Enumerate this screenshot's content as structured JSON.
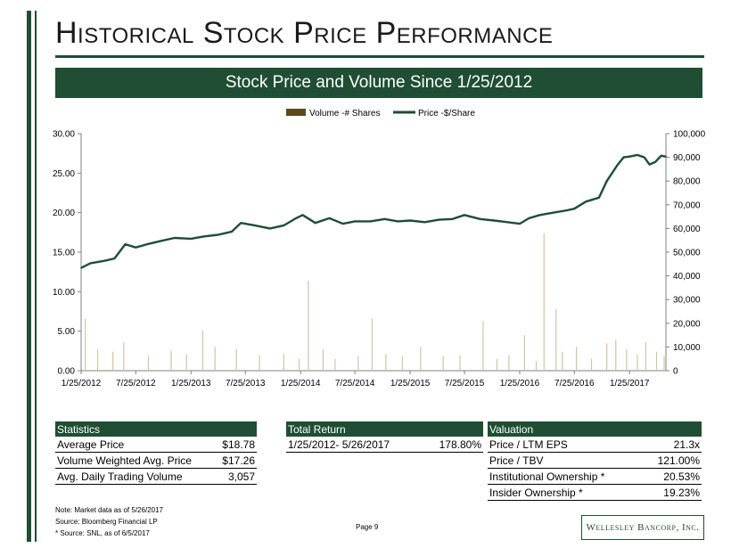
{
  "page": {
    "title": "Historical Stock Price Performance",
    "banner": "Stock Price and Volume Since 1/25/2012",
    "page_number": "Page 9",
    "logo_text": "Wellesley Bancorp, Inc.",
    "accent_color": "#1f4e34",
    "volume_color": "#cfc6a6"
  },
  "chart_data": {
    "type": "line",
    "title": "",
    "legend": [
      {
        "name": "Volume -# Shares",
        "color": "#5c4a1e",
        "shape": "bar"
      },
      {
        "name": "Price -$/Share",
        "color": "#1f4e34",
        "shape": "line"
      }
    ],
    "legend_position": "top-center",
    "x_start": "1/25/2012",
    "x_end": "5/26/2017",
    "x_ticks": [
      "1/25/2012",
      "7/25/2012",
      "1/25/2013",
      "7/25/2013",
      "1/25/2014",
      "7/25/2014",
      "1/25/2015",
      "7/25/2015",
      "1/25/2016",
      "7/25/2016",
      "1/25/2017"
    ],
    "y_left": {
      "min": 0,
      "max": 30,
      "ticks": [
        "0.00",
        "5.00",
        "10.00",
        "15.00",
        "20.00",
        "25.00",
        "30.00"
      ]
    },
    "y_right": {
      "min": 0,
      "max": 100000,
      "ticks": [
        "0",
        "10,000",
        "20,000",
        "30,000",
        "40,000",
        "50,000",
        "60,000",
        "70,000",
        "80,000",
        "90,000",
        "100,000"
      ]
    },
    "grid": false,
    "series": [
      {
        "name": "Price -$/Share",
        "axis": "left",
        "points": [
          [
            "1/25/2012",
            13.0
          ],
          [
            "2/25/2012",
            13.6
          ],
          [
            "4/10/2012",
            13.9
          ],
          [
            "5/15/2012",
            14.2
          ],
          [
            "6/20/2012",
            16.0
          ],
          [
            "7/25/2012",
            15.6
          ],
          [
            "9/1/2012",
            16.0
          ],
          [
            "10/15/2012",
            16.4
          ],
          [
            "12/1/2012",
            16.8
          ],
          [
            "1/25/2013",
            16.7
          ],
          [
            "3/10/2013",
            17.0
          ],
          [
            "4/25/2013",
            17.2
          ],
          [
            "6/10/2013",
            17.6
          ],
          [
            "7/10/2013",
            18.7
          ],
          [
            "8/25/2013",
            18.4
          ],
          [
            "10/15/2013",
            18.0
          ],
          [
            "12/1/2013",
            18.4
          ],
          [
            "1/10/2014",
            19.3
          ],
          [
            "2/1/2014",
            19.7
          ],
          [
            "3/15/2014",
            18.7
          ],
          [
            "5/1/2014",
            19.3
          ],
          [
            "6/15/2014",
            18.6
          ],
          [
            "7/25/2014",
            18.9
          ],
          [
            "9/15/2014",
            18.9
          ],
          [
            "11/1/2014",
            19.2
          ],
          [
            "12/15/2014",
            18.9
          ],
          [
            "1/25/2015",
            19.0
          ],
          [
            "3/15/2015",
            18.8
          ],
          [
            "5/1/2015",
            19.1
          ],
          [
            "6/15/2015",
            19.2
          ],
          [
            "7/25/2015",
            19.7
          ],
          [
            "9/15/2015",
            19.2
          ],
          [
            "11/1/2015",
            19.0
          ],
          [
            "12/15/2015",
            18.8
          ],
          [
            "1/25/2016",
            18.6
          ],
          [
            "2/25/2016",
            19.3
          ],
          [
            "4/1/2016",
            19.7
          ],
          [
            "5/15/2016",
            20.0
          ],
          [
            "7/1/2016",
            20.3
          ],
          [
            "7/25/2016",
            20.5
          ],
          [
            "9/1/2016",
            21.4
          ],
          [
            "10/15/2016",
            21.9
          ],
          [
            "11/10/2016",
            24.0
          ],
          [
            "12/15/2016",
            26.0
          ],
          [
            "1/5/2017",
            27.0
          ],
          [
            "1/25/2017",
            27.1
          ],
          [
            "2/20/2017",
            27.3
          ],
          [
            "3/15/2017",
            27.0
          ],
          [
            "4/1/2017",
            26.1
          ],
          [
            "4/20/2017",
            26.4
          ],
          [
            "5/10/2017",
            27.2
          ],
          [
            "5/26/2017",
            27.1
          ]
        ]
      },
      {
        "name": "Volume -# Shares",
        "axis": "right",
        "note": "daily volume bars",
        "points": [
          [
            "2/8/2012",
            22000
          ],
          [
            "3/20/2012",
            9000
          ],
          [
            "5/10/2012",
            8000
          ],
          [
            "6/15/2012",
            12000
          ],
          [
            "9/5/2012",
            6000
          ],
          [
            "11/20/2012",
            8500
          ],
          [
            "1/10/2013",
            7000
          ],
          [
            "3/5/2013",
            17000
          ],
          [
            "4/15/2013",
            10000
          ],
          [
            "6/25/2013",
            9000
          ],
          [
            "9/10/2013",
            6500
          ],
          [
            "11/30/2013",
            7000
          ],
          [
            "1/20/2014",
            5000
          ],
          [
            "2/20/2014",
            38000
          ],
          [
            "4/10/2014",
            9000
          ],
          [
            "5/20/2014",
            5000
          ],
          [
            "8/5/2014",
            6000
          ],
          [
            "9/20/2014",
            22000
          ],
          [
            "11/5/2014",
            7000
          ],
          [
            "12/30/2014",
            6000
          ],
          [
            "3/1/2015",
            10000
          ],
          [
            "5/15/2015",
            6000
          ],
          [
            "7/10/2015",
            6500
          ],
          [
            "9/25/2015",
            21000
          ],
          [
            "11/10/2015",
            5000
          ],
          [
            "12/20/2015",
            6500
          ],
          [
            "2/10/2016",
            15000
          ],
          [
            "3/20/2016",
            4000
          ],
          [
            "4/15/2016",
            58000
          ],
          [
            "5/25/2016",
            26000
          ],
          [
            "6/15/2016",
            8000
          ],
          [
            "8/1/2016",
            10000
          ],
          [
            "9/20/2016",
            5000
          ],
          [
            "11/10/2016",
            11500
          ],
          [
            "12/10/2016",
            13000
          ],
          [
            "1/15/2017",
            9000
          ],
          [
            "2/20/2017",
            7000
          ],
          [
            "3/20/2017",
            12000
          ],
          [
            "4/25/2017",
            8000
          ],
          [
            "5/20/2017",
            6000
          ]
        ]
      }
    ]
  },
  "statistics": {
    "header": "Statistics",
    "rows": [
      {
        "label": "Average Price",
        "value": "$18.78"
      },
      {
        "label": "Volume Weighted Avg. Price",
        "value": "$17.26"
      },
      {
        "label": "Avg. Daily Trading Volume",
        "value": "3,057"
      }
    ]
  },
  "total_return": {
    "header": "Total Return",
    "rows": [
      {
        "label": "1/25/2012- 5/26/2017",
        "value": "178.80%"
      }
    ]
  },
  "valuation": {
    "header": "Valuation",
    "rows": [
      {
        "label": "Price / LTM EPS",
        "value": "21.3x"
      },
      {
        "label": "Price / TBV",
        "value": "121.00%"
      },
      {
        "label": "Institutional Ownership *",
        "value": "20.53%"
      },
      {
        "label": "Insider Ownership *",
        "value": "19.23%"
      }
    ]
  },
  "notes": [
    "Note: Market data as of 5/26/2017",
    "Source: Bloomberg Financial LP",
    "* Source: SNL, as of 6/5/2017"
  ]
}
